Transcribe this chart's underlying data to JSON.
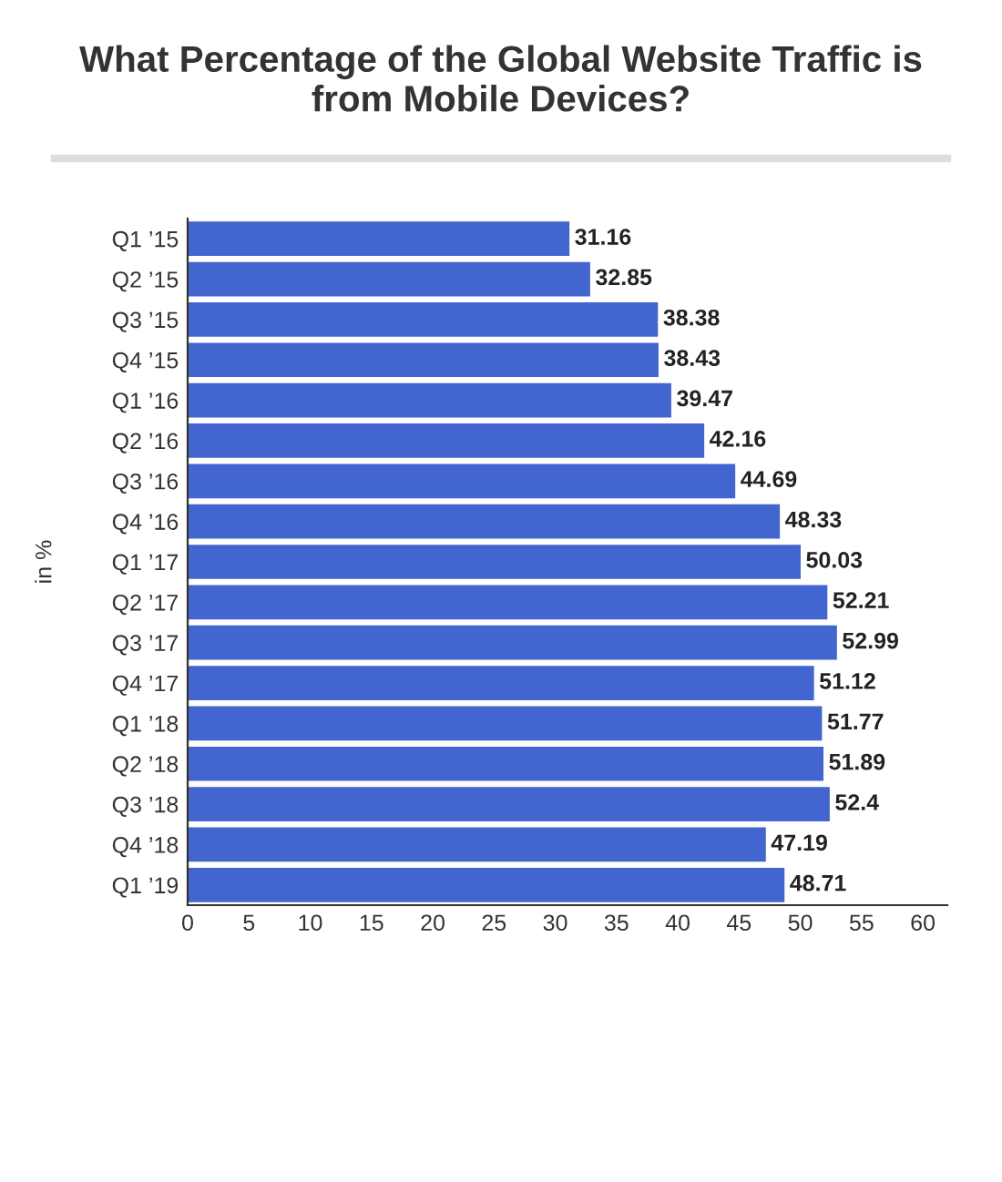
{
  "chart_data": {
    "type": "bar",
    "orientation": "horizontal",
    "title": "What Percentage of the Global Website Traffic is\nfrom Mobile Devices?",
    "ylabel": "in %",
    "categories": [
      "Q1 ’15",
      "Q2 ’15",
      "Q3 ’15",
      "Q4 ’15",
      "Q1 ’16",
      "Q2 ’16",
      "Q3 ’16",
      "Q4 ’16",
      "Q1 ’17",
      "Q2 ’17",
      "Q3 ’17",
      "Q4 ’17",
      "Q1 ’18",
      "Q2 ’18",
      "Q3 ’18",
      "Q4 ’18",
      "Q1 ’19"
    ],
    "values": [
      31.16,
      32.85,
      38.38,
      38.43,
      39.47,
      42.16,
      44.69,
      48.33,
      50.03,
      52.21,
      52.99,
      51.12,
      51.77,
      51.89,
      52.4,
      47.19,
      48.71
    ],
    "color": "#4265cf",
    "data_labels": true,
    "xlim": [
      0,
      62
    ],
    "xticks": [
      0,
      5,
      10,
      15,
      20,
      25,
      30,
      35,
      40,
      45,
      50,
      55,
      60
    ],
    "grid": false,
    "legend": false
  }
}
